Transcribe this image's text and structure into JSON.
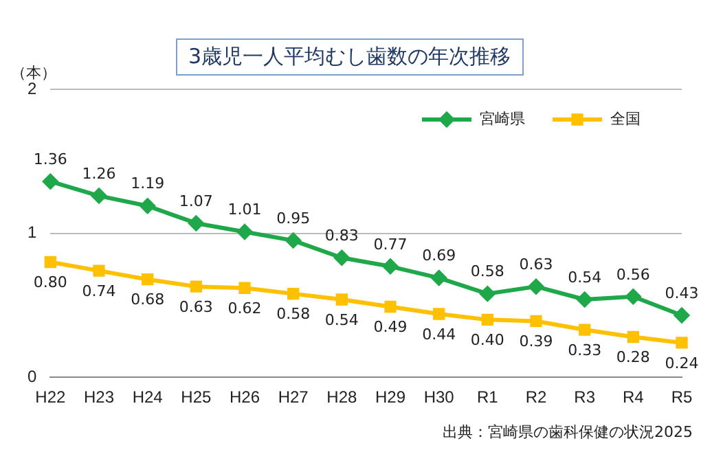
{
  "chart_data": {
    "type": "line",
    "title": "3歳児一人平均むし歯数の年次推移",
    "ylabel": "（本）",
    "categories": [
      "H22",
      "H23",
      "H24",
      "H25",
      "H26",
      "H27",
      "H28",
      "H29",
      "H30",
      "R1",
      "R2",
      "R3",
      "R4",
      "R5"
    ],
    "series": [
      {
        "name": "宮崎県",
        "color": "#1ea84a",
        "marker": "diamond",
        "values": [
          1.36,
          1.26,
          1.19,
          1.07,
          1.01,
          0.95,
          0.83,
          0.77,
          0.69,
          0.58,
          0.63,
          0.54,
          0.56,
          0.43
        ],
        "value_labels": [
          "1.36",
          "1.26",
          "1.19",
          "1.07",
          "1.01",
          "0.95",
          "0.83",
          "0.77",
          "0.69",
          "0.58",
          "0.63",
          "0.54",
          "0.56",
          "0.43"
        ]
      },
      {
        "name": "全国",
        "color": "#ffc000",
        "marker": "square",
        "values": [
          0.8,
          0.74,
          0.68,
          0.63,
          0.62,
          0.58,
          0.54,
          0.49,
          0.44,
          0.4,
          0.39,
          0.33,
          0.28,
          0.24
        ],
        "value_labels": [
          "0.80",
          "0.74",
          "0.68",
          "0.63",
          "0.62",
          "0.58",
          "0.54",
          "0.49",
          "0.44",
          "0.40",
          "0.39",
          "0.33",
          "0.28",
          "0.24"
        ]
      }
    ],
    "ylim": [
      0,
      2
    ],
    "yticks": [
      0,
      1,
      2
    ],
    "grid": "y",
    "legend": "top right",
    "annotations": [
      "出典：宮崎県の歯科保健の状況2025"
    ]
  }
}
